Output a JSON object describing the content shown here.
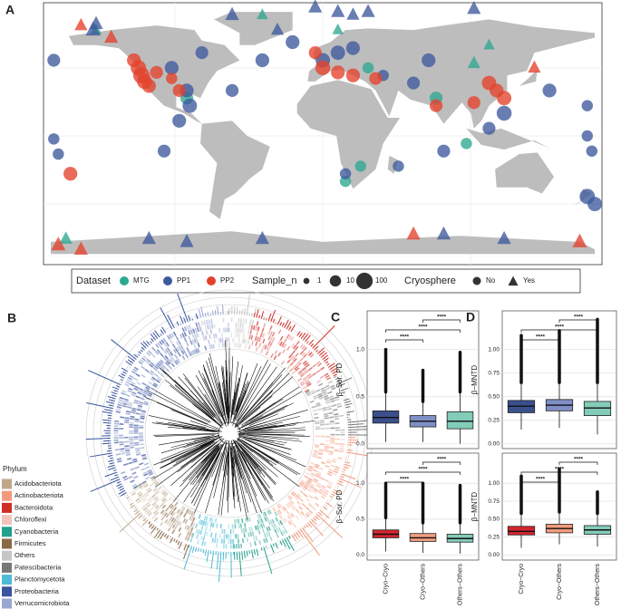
{
  "chart_data": [
    {
      "type": "map",
      "panel": "A",
      "legend": {
        "dataset_title": "Dataset",
        "size_title": "Sample_n",
        "sizes": [
          1,
          10,
          100
        ],
        "shape_title": "Cryosphere",
        "shapes": [
          "No",
          "Yes"
        ]
      },
      "series": [
        {
          "name": "MTG",
          "color": "#2ea88f",
          "lon": [
            -90,
            -150,
            -170,
            30,
            -40,
            110,
            75,
            95,
            15,
            25,
            100,
            10
          ],
          "lat": [
            25,
            70,
            -68,
            45,
            80,
            60,
            25,
            -5,
            -30,
            -20,
            48,
            70
          ],
          "sample_n": [
            20,
            10,
            20,
            10,
            10,
            10,
            20,
            10,
            10,
            10,
            20,
            10
          ],
          "cryosphere": [
            "No",
            "Yes",
            "Yes",
            "No",
            "Yes",
            "Yes",
            "No",
            "No",
            "No",
            "No",
            "Yes",
            "Yes"
          ]
        },
        {
          "name": "PP1",
          "color": "#3d5a9c",
          "lon": [
            -178,
            -178,
            -175,
            -152,
            -150,
            -80,
            -100,
            -90,
            -88,
            -95,
            -105,
            -60,
            -40,
            -20,
            -30,
            -60,
            -5,
            10,
            20,
            30,
            100,
            0,
            10,
            20,
            40,
            60,
            70,
            50,
            15,
            80,
            120,
            110,
            150,
            175,
            175,
            178,
            175,
            180,
            -115,
            -90,
            -40,
            80,
            120
          ],
          "lat": [
            50,
            -2,
            -12,
            70,
            74,
            55,
            45,
            30,
            20,
            10,
            -10,
            30,
            50,
            62,
            70,
            80,
            85,
            82,
            80,
            82,
            84,
            50,
            55,
            58,
            40,
            35,
            50,
            -20,
            -25,
            -10,
            15,
            5,
            30,
            20,
            0,
            -10,
            -40,
            -45,
            -68,
            -70,
            -68,
            -65,
            -68
          ],
          "sample_n": [
            20,
            10,
            10,
            50,
            30,
            20,
            30,
            30,
            40,
            30,
            20,
            20,
            30,
            30,
            20,
            30,
            30,
            30,
            20,
            30,
            30,
            40,
            40,
            30,
            10,
            20,
            30,
            10,
            10,
            20,
            50,
            20,
            30,
            10,
            10,
            10,
            60,
            40,
            30,
            30,
            30,
            30,
            30
          ],
          "cryosphere": [
            "No",
            "No",
            "No",
            "Yes",
            "Yes",
            "No",
            "No",
            "No",
            "No",
            "No",
            "No",
            "No",
            "No",
            "No",
            "Yes",
            "Yes",
            "Yes",
            "Yes",
            "Yes",
            "Yes",
            "Yes",
            "No",
            "No",
            "No",
            "No",
            "No",
            "No",
            "No",
            "No",
            "No",
            "No",
            "No",
            "No",
            "No",
            "No",
            "No",
            "No",
            "No",
            "Yes",
            "Yes",
            "Yes",
            "Yes",
            "Yes"
          ]
        },
        {
          "name": "PP2",
          "color": "#e4412b",
          "lon": [
            -125,
            -122,
            -120,
            -118,
            -115,
            -110,
            -100,
            -95,
            -160,
            -140,
            0,
            10,
            20,
            -5,
            35,
            110,
            115,
            120,
            100,
            75,
            140,
            -167,
            -160,
            60,
            170,
            -175
          ],
          "lat": [
            50,
            45,
            40,
            36,
            33,
            42,
            38,
            30,
            73,
            65,
            45,
            42,
            40,
            55,
            38,
            35,
            30,
            25,
            22,
            20,
            45,
            -25,
            -75,
            -65,
            -70,
            -72
          ],
          "sample_n": [
            30,
            60,
            100,
            50,
            30,
            20,
            10,
            20,
            20,
            30,
            50,
            30,
            30,
            20,
            20,
            40,
            30,
            40,
            20,
            20,
            20,
            30,
            30,
            30,
            40,
            40
          ],
          "cryosphere": [
            "No",
            "No",
            "No",
            "No",
            "No",
            "No",
            "No",
            "No",
            "Yes",
            "Yes",
            "No",
            "No",
            "No",
            "No",
            "No",
            "No",
            "No",
            "No",
            "No",
            "No",
            "Yes",
            "No",
            "Yes",
            "Yes",
            "Yes",
            "Yes"
          ]
        }
      ]
    },
    {
      "type": "tree",
      "panel": "B",
      "legend_title": "Phylum",
      "phyla": [
        {
          "name": "Acidobacteriota",
          "color": "#bfa788"
        },
        {
          "name": "Actinobacteriota",
          "color": "#f29a7c"
        },
        {
          "name": "Bacteroidota",
          "color": "#cf2e25"
        },
        {
          "name": "Chloroflexi",
          "color": "#f3c4bb"
        },
        {
          "name": "Cyanobacteria",
          "color": "#21a08c"
        },
        {
          "name": "Firmicutes",
          "color": "#8a6a46"
        },
        {
          "name": "Others",
          "color": "#c6c6c6"
        },
        {
          "name": "Patescibacteria",
          "color": "#777777"
        },
        {
          "name": "Planctomycetota",
          "color": "#4bbbd6"
        },
        {
          "name": "Proteobacteria",
          "color": "#3a55a0"
        },
        {
          "name": "Verrucomicrobiota",
          "color": "#9aa6d2"
        }
      ]
    },
    {
      "type": "box",
      "panel": "C",
      "ylabel": "β−Sor. PD",
      "ylim": [
        -0.05,
        1.41
      ],
      "yticks": [
        {
          "value": 0,
          "label": "0.0"
        },
        {
          "value": 0.5,
          "label": "0.5"
        },
        {
          "value": 1,
          "label": "1.0"
        }
      ],
      "boxes": [
        {
          "color": "#3b4f8c",
          "whislo": 0.02,
          "q1": 0.22,
          "median": 0.28,
          "q3": 0.35,
          "whishi": 0.55,
          "outlier_max": 1.0
        },
        {
          "color": "#8090c6",
          "whislo": 0.02,
          "q1": 0.18,
          "median": 0.24,
          "q3": 0.3,
          "whishi": 0.45,
          "outlier_max": 0.78
        },
        {
          "color": "#82ccb8",
          "whislo": 0.0,
          "q1": 0.16,
          "median": 0.24,
          "q3": 0.34,
          "whishi": 0.55,
          "outlier_max": 0.97
        }
      ],
      "annotations": [
        "****",
        "****",
        "****"
      ]
    },
    {
      "type": "box",
      "ylabel": "β−Sor. PD",
      "ylim": [
        -0.07,
        1.42
      ],
      "yticks": [
        {
          "value": 0,
          "label": "0.0"
        },
        {
          "value": 0.5,
          "label": "0.5"
        },
        {
          "value": 1,
          "label": "1.0"
        }
      ],
      "categories": [
        "Cryo−Cryo",
        "Cryo−Others",
        "Others−Others"
      ],
      "boxes": [
        {
          "color": "#d3252f",
          "whislo": 0.05,
          "q1": 0.24,
          "median": 0.29,
          "q3": 0.35,
          "whishi": 0.52,
          "outlier_max": 1.0
        },
        {
          "color": "#f29c7d",
          "whislo": 0.03,
          "q1": 0.19,
          "median": 0.24,
          "q3": 0.3,
          "whishi": 0.45,
          "outlier_max": 1.0
        },
        {
          "color": "#82ccb8",
          "whislo": 0.02,
          "q1": 0.18,
          "median": 0.23,
          "q3": 0.29,
          "whishi": 0.45,
          "outlier_max": 0.97
        }
      ],
      "annotations": [
        "****",
        "****",
        "****"
      ]
    },
    {
      "type": "box",
      "panel": "D",
      "ylabel": "β−MNTD",
      "ylim": [
        -0.05,
        1.41
      ],
      "yticks": [
        {
          "value": 0,
          "label": "0.00"
        },
        {
          "value": 0.25,
          "label": "0.25"
        },
        {
          "value": 0.5,
          "label": "0.50"
        },
        {
          "value": 0.75,
          "label": "0.75"
        },
        {
          "value": 1,
          "label": "1.00"
        }
      ],
      "boxes": [
        {
          "color": "#3b4f8c",
          "whislo": 0.15,
          "q1": 0.33,
          "median": 0.4,
          "q3": 0.46,
          "whishi": 0.65,
          "outlier_max": 1.15
        },
        {
          "color": "#8090c6",
          "whislo": 0.17,
          "q1": 0.35,
          "median": 0.41,
          "q3": 0.47,
          "whishi": 0.65,
          "outlier_max": 1.2
        },
        {
          "color": "#82ccb8",
          "whislo": 0.1,
          "q1": 0.3,
          "median": 0.38,
          "q3": 0.45,
          "whishi": 0.65,
          "outlier_max": 1.32
        }
      ],
      "annotations": [
        "****",
        "****",
        "****"
      ]
    },
    {
      "type": "box",
      "ylabel": "β−MNTD",
      "ylim": [
        -0.07,
        1.42
      ],
      "yticks": [
        {
          "value": 0,
          "label": "0.00"
        },
        {
          "value": 0.25,
          "label": "0.25"
        },
        {
          "value": 0.5,
          "label": "0.50"
        },
        {
          "value": 0.75,
          "label": "0.75"
        },
        {
          "value": 1,
          "label": "1.00"
        }
      ],
      "categories": [
        "Cryo−Cryo",
        "Cryo−Others",
        "Others−Others"
      ],
      "boxes": [
        {
          "color": "#d3252f",
          "whislo": 0.1,
          "q1": 0.28,
          "median": 0.33,
          "q3": 0.4,
          "whishi": 0.58,
          "outlier_max": 1.1
        },
        {
          "color": "#f29c7d",
          "whislo": 0.15,
          "q1": 0.31,
          "median": 0.37,
          "q3": 0.43,
          "whishi": 0.6,
          "outlier_max": 1.2
        },
        {
          "color": "#82ccb8",
          "whislo": 0.12,
          "q1": 0.29,
          "median": 0.35,
          "q3": 0.41,
          "whishi": 0.58,
          "outlier_max": 0.88
        }
      ],
      "annotations": [
        "****",
        "****",
        "****"
      ]
    }
  ]
}
